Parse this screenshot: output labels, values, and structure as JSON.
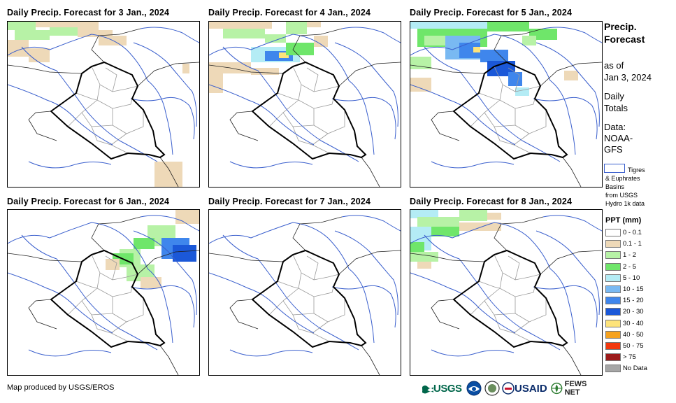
{
  "panels": [
    {
      "title": "Daily Precip. Forecast for 3 Jan., 2024"
    },
    {
      "title": "Daily Precip. Forecast for 4 Jan., 2024"
    },
    {
      "title": "Daily Precip. Forecast for 5 Jan., 2024"
    },
    {
      "title": "Daily Precip. Forecast for 6 Jan., 2024"
    },
    {
      "title": "Daily Precip. Forecast for 7 Jan., 2024"
    },
    {
      "title": "Daily Precip. Forecast for 8 Jan., 2024"
    }
  ],
  "sidebar": {
    "title_line1": "Precip.",
    "title_line2": "Forecast",
    "asof_line1": "as of",
    "asof_line2": "Jan 3, 2024",
    "daily_line1": "Daily",
    "daily_line2": "Totals",
    "data_line1": "Data:",
    "data_line2": "NOAA-",
    "data_line3": "GFS",
    "basin_line1": "Tigres",
    "basin_line2": "& Euphrates",
    "basin_line3": "Basins",
    "basin_line4": "from USGS",
    "basin_line5": "Hydro 1k data"
  },
  "legend": {
    "title": "PPT (mm)",
    "items": [
      {
        "label": "0 - 0.1",
        "color": "#ffffff"
      },
      {
        "label": "0.1 - 1",
        "color": "#eed9b8"
      },
      {
        "label": "1 - 2",
        "color": "#b7f2a6"
      },
      {
        "label": "2 - 5",
        "color": "#6fe66a"
      },
      {
        "label": "5 - 10",
        "color": "#b4ecf5"
      },
      {
        "label": "10 - 15",
        "color": "#79b9f2"
      },
      {
        "label": "15 - 20",
        "color": "#3f86ec"
      },
      {
        "label": "20 - 30",
        "color": "#1b58d8"
      },
      {
        "label": "30 - 40",
        "color": "#fde37a"
      },
      {
        "label": "40 - 50",
        "color": "#f6a21e"
      },
      {
        "label": "50 - 75",
        "color": "#f2380e"
      },
      {
        "label": "> 75",
        "color": "#9c1a1a"
      },
      {
        "label": "No Data",
        "color": "#a6a6a6"
      }
    ]
  },
  "footer": {
    "credit": "Map produced by USGS/EROS",
    "logo_usgs": "USGS",
    "logo_usaid": "USAID",
    "logo_fews": "FEWS NET"
  },
  "colors": {
    "border": "#000000",
    "province": "#9a9a9a",
    "river": "#3a5fcd"
  }
}
